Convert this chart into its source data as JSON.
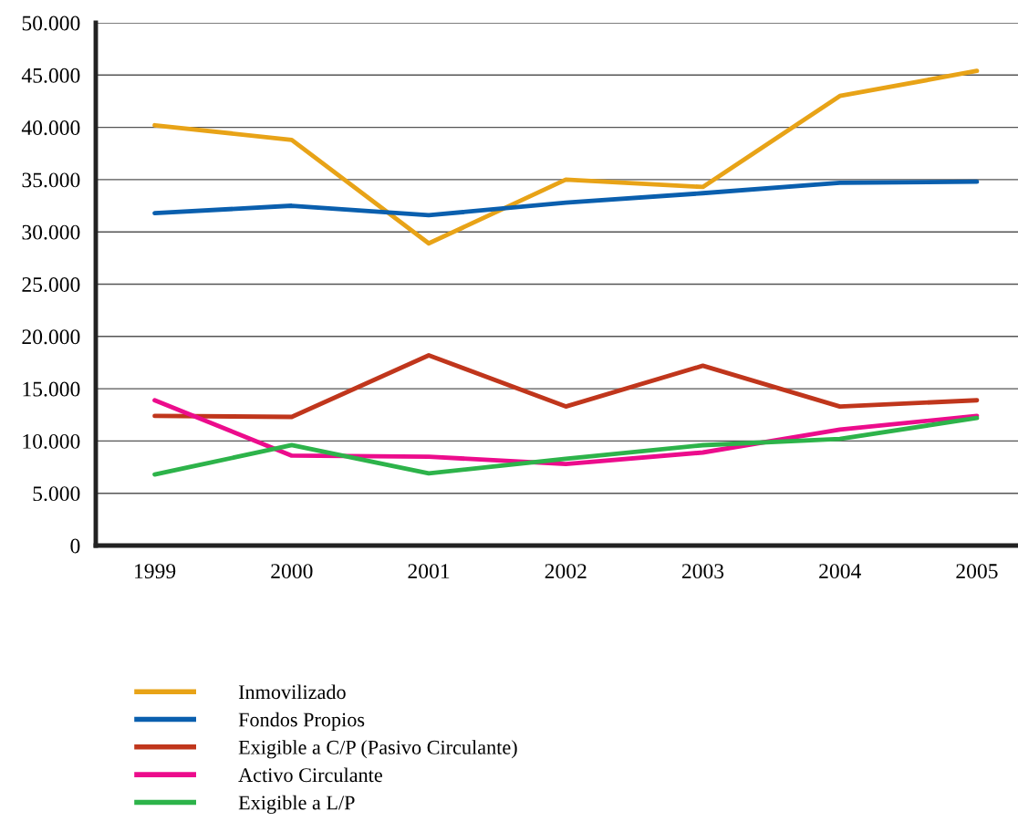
{
  "chart_data": {
    "type": "line",
    "categories": [
      "1999",
      "2000",
      "2001",
      "2002",
      "2003",
      "2004",
      "2005"
    ],
    "ylim": [
      0,
      50000
    ],
    "yticks": [
      {
        "value": 0,
        "label": "0"
      },
      {
        "value": 5000,
        "label": "5.000"
      },
      {
        "value": 10000,
        "label": "10.000"
      },
      {
        "value": 15000,
        "label": "15.000"
      },
      {
        "value": 20000,
        "label": "20.000"
      },
      {
        "value": 25000,
        "label": "25.000"
      },
      {
        "value": 30000,
        "label": "30.000"
      },
      {
        "value": 35000,
        "label": "35.000"
      },
      {
        "value": 40000,
        "label": "40.000"
      },
      {
        "value": 45000,
        "label": "45.000"
      },
      {
        "value": 50000,
        "label": "50.000"
      }
    ],
    "grid": "y",
    "legend": "bottom",
    "marker": "none",
    "line_style": "solid",
    "series": [
      {
        "name": "Inmovilizado",
        "color": "#e8a317",
        "values": [
          40200,
          38800,
          28900,
          35000,
          34300,
          43000,
          45400
        ]
      },
      {
        "name": "Fondos Propios",
        "color": "#0a5fae",
        "values": [
          31800,
          32500,
          31600,
          32800,
          33700,
          34700,
          34800
        ]
      },
      {
        "name": "Exigible a C/P (Pasivo Circulante)",
        "color": "#c0361c",
        "values": [
          12400,
          12300,
          18200,
          13300,
          17200,
          13300,
          13900
        ]
      },
      {
        "name": "Activo Circulante",
        "color": "#ec0c8c",
        "values": [
          13900,
          8600,
          8500,
          7800,
          8900,
          11100,
          12400
        ]
      },
      {
        "name": "Exigible a L/P",
        "color": "#2db34a",
        "values": [
          6800,
          9600,
          6900,
          8300,
          9600,
          10200,
          12200
        ]
      }
    ]
  }
}
